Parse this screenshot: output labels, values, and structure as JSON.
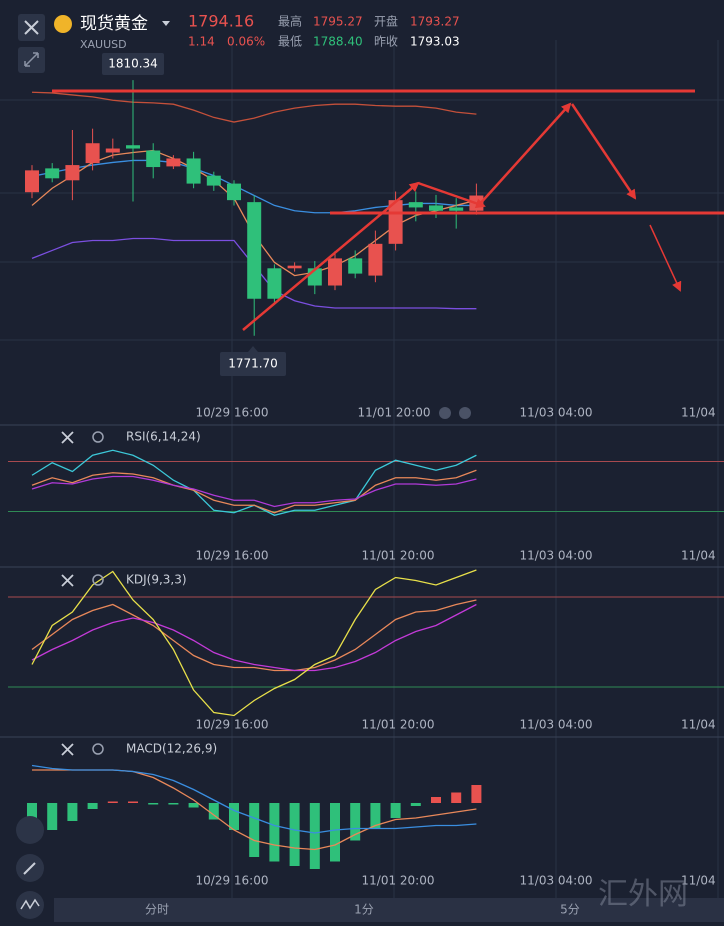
{
  "header": {
    "name": "现货黄金",
    "symbol": "XAUUSD",
    "price": "1794.16",
    "change": "1.14",
    "change_percent": "0.06%",
    "stats": [
      {
        "label": "最高",
        "value": "1795.27"
      },
      {
        "label": "开盘",
        "value": "1793.27"
      },
      {
        "label": "最低",
        "value": "1788.40"
      },
      {
        "label": "昨收",
        "value": "1793.03"
      }
    ]
  },
  "time_labels": [
    "10/29 16:00",
    "11/01 20:00",
    "11/03 04:00",
    "11/04"
  ],
  "main": {
    "ylim": [
      1762,
      1816.4
    ],
    "price_tags": [
      "1810.34",
      "1771.70"
    ],
    "up_color": "#e8524f",
    "down_color": "#2fc07a",
    "candles": [
      {
        "open": 1793.4,
        "high": 1797.5,
        "low": 1792.5,
        "close": 1796.7
      },
      {
        "open": 1797.0,
        "high": 1797.8,
        "low": 1794.9,
        "close": 1795.5
      },
      {
        "open": 1795.2,
        "high": 1802.8,
        "low": 1792.2,
        "close": 1797.5
      },
      {
        "open": 1797.8,
        "high": 1803.0,
        "low": 1796.7,
        "close": 1800.8
      },
      {
        "open": 1799.4,
        "high": 1801.5,
        "low": 1798.5,
        "close": 1800.0
      },
      {
        "open": 1800.5,
        "high": 1810.34,
        "low": 1792.0,
        "close": 1800.0
      },
      {
        "open": 1799.7,
        "high": 1800.8,
        "low": 1795.5,
        "close": 1797.2
      },
      {
        "open": 1797.3,
        "high": 1799.0,
        "low": 1796.9,
        "close": 1798.5
      },
      {
        "open": 1798.5,
        "high": 1799.5,
        "low": 1794.0,
        "close": 1794.7
      },
      {
        "open": 1795.9,
        "high": 1796.5,
        "low": 1793.6,
        "close": 1794.4
      },
      {
        "open": 1794.7,
        "high": 1795.2,
        "low": 1791.4,
        "close": 1792.2
      },
      {
        "open": 1791.9,
        "high": 1792.9,
        "low": 1771.7,
        "close": 1777.3
      },
      {
        "open": 1781.9,
        "high": 1782.5,
        "low": 1776.5,
        "close": 1777.3
      },
      {
        "open": 1781.9,
        "high": 1782.8,
        "low": 1781.4,
        "close": 1782.3
      },
      {
        "open": 1781.9,
        "high": 1783.0,
        "low": 1778.0,
        "close": 1779.3
      },
      {
        "open": 1779.3,
        "high": 1784.5,
        "low": 1778.6,
        "close": 1783.4
      },
      {
        "open": 1783.4,
        "high": 1784.6,
        "low": 1780.4,
        "close": 1781.1
      },
      {
        "open": 1780.8,
        "high": 1787.6,
        "low": 1779.8,
        "close": 1785.6
      },
      {
        "open": 1785.6,
        "high": 1793.5,
        "low": 1784.6,
        "close": 1792.2
      },
      {
        "open": 1791.9,
        "high": 1793.5,
        "low": 1789.0,
        "close": 1791.1
      },
      {
        "open": 1791.4,
        "high": 1793.0,
        "low": 1789.5,
        "close": 1790.6
      },
      {
        "open": 1791.1,
        "high": 1792.5,
        "low": 1787.9,
        "close": 1790.6
      },
      {
        "open": 1790.6,
        "high": 1794.7,
        "low": 1790.0,
        "close": 1792.9
      }
    ],
    "lines": [
      {
        "color": "#c4503a",
        "values": [
          1808.5,
          1808.4,
          1808.1,
          1807.8,
          1807.3,
          1807.0,
          1806.9,
          1806.7,
          1805.8,
          1804.7,
          1804.0,
          1804.6,
          1805.5,
          1806.1,
          1806.5,
          1806.7,
          1806.7,
          1806.5,
          1806.4,
          1806.4,
          1806.1,
          1805.5,
          1805.2
        ]
      },
      {
        "color": "#3a8ee0",
        "values": [
          1795.8,
          1796.4,
          1797.0,
          1797.5,
          1797.9,
          1798.2,
          1798.2,
          1797.9,
          1797.0,
          1795.9,
          1794.4,
          1792.9,
          1791.4,
          1790.6,
          1790.3,
          1790.3,
          1790.6,
          1791.1,
          1791.4,
          1791.7,
          1791.7,
          1791.4,
          1791.4
        ]
      },
      {
        "color": "#7b4fe0",
        "values": [
          1783.4,
          1784.6,
          1785.8,
          1786.1,
          1786.1,
          1786.4,
          1786.4,
          1786.1,
          1786.1,
          1786.1,
          1786.1,
          1782.3,
          1778.5,
          1777.0,
          1776.2,
          1775.9,
          1775.9,
          1775.9,
          1775.9,
          1775.9,
          1775.9,
          1775.8,
          1775.8
        ]
      },
      {
        "color": "#e8885a",
        "values": [
          1791.4,
          1794.0,
          1795.9,
          1797.9,
          1799.0,
          1799.4,
          1799.7,
          1798.5,
          1797.0,
          1795.2,
          1792.5,
          1786.9,
          1782.8,
          1780.8,
          1781.3,
          1782.3,
          1783.8,
          1786.1,
          1788.4,
          1789.9,
          1790.6,
          1791.4,
          1792.2
        ]
      }
    ]
  },
  "rsi": {
    "title": "RSI(6,14,24)",
    "ylim": [
      0,
      100
    ],
    "levels": [
      70,
      30
    ],
    "level_colors": [
      "#a84a4f",
      "#2f8a55"
    ],
    "lines": [
      {
        "color": "#3cc8d8",
        "values": [
          59,
          69,
          62,
          75,
          79,
          75,
          67,
          55,
          47,
          31,
          29,
          35,
          27,
          31,
          31,
          35,
          39,
          63,
          71,
          67,
          63,
          67,
          75
        ]
      },
      {
        "color": "#e8885a",
        "values": [
          51,
          57,
          53,
          59,
          61,
          60,
          57,
          51,
          47,
          39,
          35,
          35,
          29,
          35,
          35,
          37,
          39,
          51,
          57,
          57,
          55,
          57,
          63
        ]
      },
      {
        "color": "#b03ad8",
        "values": [
          48,
          53,
          52,
          56,
          58,
          58,
          55,
          51,
          48,
          43,
          39,
          39,
          34,
          37,
          37,
          39,
          40,
          47,
          52,
          52,
          51,
          52,
          56
        ]
      }
    ]
  },
  "kdj": {
    "title": "KDJ(9,3,3)",
    "ylim": [
      0,
      100
    ],
    "levels": [
      80,
      20
    ],
    "level_colors": [
      "#a84a4f",
      "#2f8a55"
    ],
    "lines": [
      {
        "color": "#e8885a",
        "values": [
          45,
          55,
          65,
          71,
          75,
          68,
          61,
          51,
          41,
          35,
          33,
          33,
          31,
          31,
          33,
          38,
          45,
          55,
          65,
          70,
          71,
          75,
          78
        ]
      },
      {
        "color": "#c33ad8",
        "values": [
          38,
          45,
          51,
          58,
          63,
          66,
          63,
          58,
          51,
          43,
          38,
          35,
          33,
          31,
          31,
          33,
          37,
          43,
          51,
          57,
          61,
          68,
          75
        ]
      },
      {
        "color": "#e8e04a",
        "values": [
          35,
          61,
          70,
          88,
          97,
          78,
          65,
          45,
          18,
          3,
          1,
          11,
          19,
          25,
          35,
          41,
          65,
          85,
          93,
          91,
          88,
          93,
          98
        ]
      }
    ]
  },
  "macd": {
    "title": "MACD(12,26,9)",
    "ylim": [
      -5.8,
      4.2
    ],
    "histogram": [
      -2.2,
      -1.8,
      -1.2,
      -0.4,
      0.1,
      0.1,
      -0.1,
      -0.1,
      -0.3,
      -1.1,
      -1.8,
      -3.6,
      -3.9,
      -4.2,
      -4.4,
      -3.9,
      -2.5,
      -1.7,
      -1.0,
      -0.2,
      0.4,
      0.7,
      1.2
    ],
    "lines": [
      {
        "color": "#e8885a",
        "values": [
          2.2,
          2.2,
          2.2,
          2.2,
          2.2,
          2.1,
          1.7,
          1.0,
          0.2,
          -0.8,
          -1.8,
          -2.5,
          -2.8,
          -3.0,
          -3.1,
          -2.8,
          -2.1,
          -1.5,
          -1.1,
          -1.0,
          -0.8,
          -0.6,
          -0.4
        ]
      },
      {
        "color": "#3a8ee0",
        "values": [
          2.5,
          2.3,
          2.2,
          2.2,
          2.2,
          2.1,
          1.9,
          1.5,
          0.9,
          0.2,
          -0.5,
          -1.0,
          -1.5,
          -1.8,
          -2.0,
          -1.8,
          -1.7,
          -1.7,
          -1.7,
          -1.6,
          -1.5,
          -1.5,
          -1.4
        ]
      }
    ]
  },
  "tabs": [
    "分时",
    "1分",
    "5分"
  ],
  "watermark": "汇外网"
}
